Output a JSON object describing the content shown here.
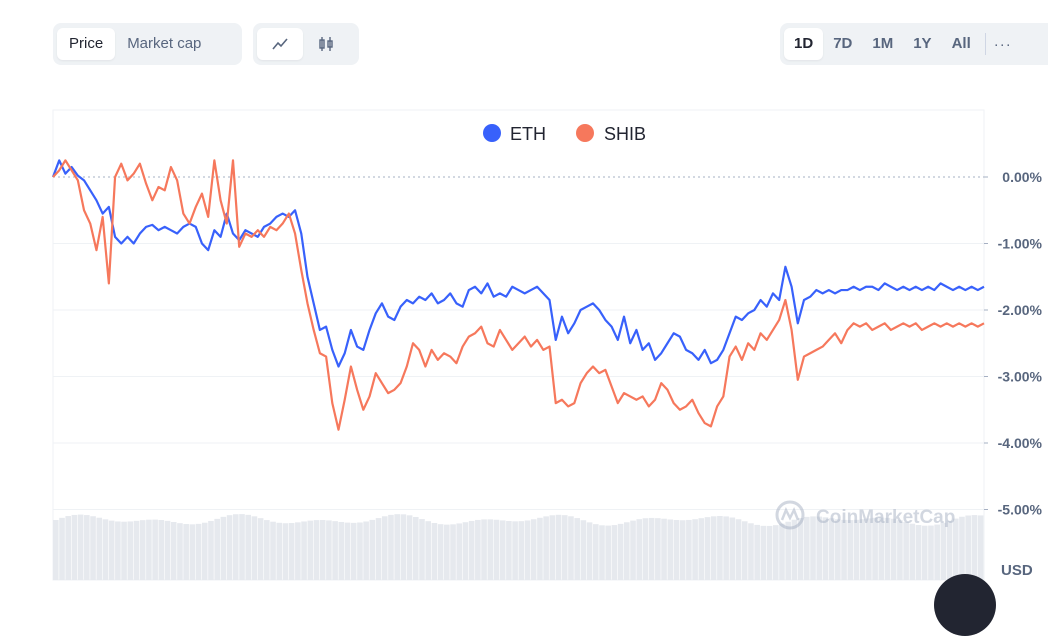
{
  "toolbar": {
    "type_tabs": [
      "Price",
      "Market cap"
    ],
    "active_type": "Price",
    "mode_icons": [
      "line-chart-icon",
      "candlestick-icon"
    ],
    "active_mode": "line-chart-icon",
    "ranges": [
      "1D",
      "7D",
      "1M",
      "1Y",
      "All"
    ],
    "active_range": "1D",
    "more_label": "···"
  },
  "watermark": "CoinMarketCap",
  "currency": "USD",
  "colors": {
    "ETH": "#3861fb",
    "SHIB": "#f6785c",
    "grid": "#eff2f5",
    "axis_text": "#58667e"
  },
  "chart_data": {
    "type": "line",
    "ylabel": "",
    "ylim": [
      -5.0,
      0.9
    ],
    "yticks": [
      0,
      -1,
      -2,
      -3,
      -4,
      -5
    ],
    "ytick_labels": [
      "0.00%",
      "-1.00%",
      "-2.00%",
      "-3.00%",
      "-4.00%",
      "-5.00%"
    ],
    "legend": [
      "ETH",
      "SHIB"
    ],
    "legend_position": "top-center",
    "grid": true,
    "x": [
      0,
      2,
      4,
      6,
      8,
      10,
      12,
      14,
      16,
      18,
      20,
      22,
      24,
      26,
      28,
      30,
      32,
      34,
      36,
      38,
      40,
      42,
      44,
      46,
      48,
      50,
      52,
      54,
      56,
      58,
      60,
      62,
      64,
      66,
      68,
      70,
      72,
      74,
      76,
      78,
      80,
      82,
      84,
      86,
      88,
      90,
      92,
      94,
      96,
      98,
      100,
      102,
      104,
      106,
      108,
      110,
      112,
      114,
      116,
      118,
      120,
      122,
      124,
      126,
      128,
      130,
      132,
      134,
      136,
      138,
      140,
      142,
      144,
      146,
      148,
      150,
      152,
      154,
      156,
      158,
      160,
      162,
      164,
      166,
      168,
      170,
      172,
      174,
      176,
      178,
      180,
      182,
      184,
      186,
      188,
      190,
      192,
      194,
      196,
      198,
      200,
      202,
      204,
      206,
      208,
      210,
      212,
      214,
      216,
      218,
      220,
      222,
      224,
      226,
      228,
      230,
      232,
      234,
      236,
      238,
      240,
      242,
      244,
      246,
      248,
      250,
      252,
      254,
      256,
      258,
      260,
      262,
      264,
      266,
      268,
      270,
      272,
      274,
      276,
      278,
      280,
      282,
      284,
      286,
      288,
      290,
      292,
      294,
      296,
      298,
      300
    ],
    "series": [
      {
        "name": "ETH",
        "values": [
          0,
          0.25,
          0.05,
          0.15,
          0.02,
          -0.05,
          -0.2,
          -0.35,
          -0.55,
          -0.45,
          -0.9,
          -1.0,
          -0.9,
          -1.0,
          -0.85,
          -0.75,
          -0.72,
          -0.8,
          -0.75,
          -0.8,
          -0.85,
          -0.75,
          -0.7,
          -0.75,
          -1.0,
          -1.1,
          -0.8,
          -0.9,
          -0.55,
          -0.85,
          -0.95,
          -0.8,
          -0.85,
          -0.9,
          -0.75,
          -0.7,
          -0.6,
          -0.55,
          -0.6,
          -0.5,
          -0.85,
          -1.5,
          -1.9,
          -2.3,
          -2.25,
          -2.6,
          -2.85,
          -2.65,
          -2.3,
          -2.55,
          -2.6,
          -2.3,
          -2.05,
          -1.9,
          -2.1,
          -2.15,
          -1.95,
          -1.85,
          -1.9,
          -1.8,
          -1.85,
          -1.75,
          -1.9,
          -1.85,
          -1.75,
          -1.9,
          -1.95,
          -1.7,
          -1.65,
          -1.75,
          -1.6,
          -1.8,
          -1.75,
          -1.8,
          -1.65,
          -1.7,
          -1.75,
          -1.7,
          -1.65,
          -1.75,
          -1.85,
          -2.45,
          -2.1,
          -2.35,
          -2.2,
          -2.0,
          -1.95,
          -1.9,
          -2.0,
          -2.15,
          -2.25,
          -2.45,
          -2.1,
          -2.5,
          -2.3,
          -2.6,
          -2.5,
          -2.75,
          -2.65,
          -2.5,
          -2.35,
          -2.4,
          -2.6,
          -2.65,
          -2.75,
          -2.6,
          -2.8,
          -2.75,
          -2.6,
          -2.35,
          -2.1,
          -2.15,
          -2.05,
          -2.0,
          -1.85,
          -1.95,
          -1.75,
          -1.85,
          -1.35,
          -1.65,
          -2.2,
          -1.85,
          -1.8,
          -1.7,
          -1.75,
          -1.7,
          -1.75,
          -1.7,
          -1.7,
          -1.65,
          -1.7,
          -1.65,
          -1.65,
          -1.7,
          -1.6,
          -1.65,
          -1.7,
          -1.65,
          -1.7,
          -1.65,
          -1.7,
          -1.65,
          -1.7,
          -1.6,
          -1.65,
          -1.7,
          -1.65,
          -1.7,
          -1.65,
          -1.7,
          -1.65
        ]
      },
      {
        "name": "SHIB",
        "values": [
          0,
          0.1,
          0.25,
          0.1,
          -0.05,
          -0.5,
          -0.7,
          -1.1,
          -0.6,
          -1.6,
          0.0,
          0.2,
          -0.05,
          0.05,
          0.2,
          -0.1,
          -0.35,
          -0.15,
          -0.2,
          0.15,
          -0.05,
          -0.55,
          -0.7,
          -0.45,
          -0.25,
          -0.6,
          0.25,
          -0.35,
          -0.7,
          0.25,
          -1.05,
          -0.85,
          -0.9,
          -0.8,
          -0.9,
          -0.75,
          -0.8,
          -0.7,
          -0.55,
          -0.85,
          -1.4,
          -1.9,
          -2.3,
          -2.65,
          -2.7,
          -3.4,
          -3.8,
          -3.35,
          -2.85,
          -3.2,
          -3.5,
          -3.3,
          -2.95,
          -3.1,
          -3.25,
          -3.2,
          -3.1,
          -2.85,
          -2.5,
          -2.6,
          -2.85,
          -2.6,
          -2.75,
          -2.65,
          -2.7,
          -2.8,
          -2.55,
          -2.4,
          -2.35,
          -2.25,
          -2.5,
          -2.55,
          -2.3,
          -2.45,
          -2.6,
          -2.5,
          -2.4,
          -2.55,
          -2.45,
          -2.6,
          -2.55,
          -3.4,
          -3.35,
          -3.45,
          -3.4,
          -3.1,
          -2.95,
          -2.85,
          -2.95,
          -2.9,
          -3.15,
          -3.4,
          -3.25,
          -3.3,
          -3.35,
          -3.3,
          -3.45,
          -3.35,
          -3.1,
          -3.2,
          -3.4,
          -3.5,
          -3.45,
          -3.35,
          -3.55,
          -3.7,
          -3.75,
          -3.45,
          -3.3,
          -2.7,
          -2.55,
          -2.75,
          -2.5,
          -2.6,
          -2.35,
          -2.45,
          -2.3,
          -2.15,
          -1.85,
          -2.3,
          -3.05,
          -2.7,
          -2.65,
          -2.6,
          -2.55,
          -2.45,
          -2.35,
          -2.5,
          -2.3,
          -2.2,
          -2.25,
          -2.2,
          -2.3,
          -2.25,
          -2.2,
          -2.3,
          -2.25,
          -2.2,
          -2.25,
          -2.2,
          -2.3,
          -2.25,
          -2.2,
          -2.25,
          -2.2,
          -2.25,
          -2.2,
          -2.25,
          -2.2,
          -2.25,
          -2.2
        ]
      }
    ]
  }
}
